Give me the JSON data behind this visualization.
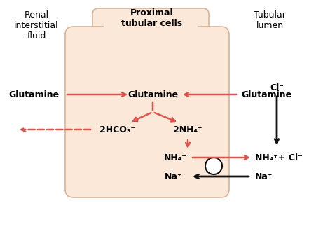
{
  "bg_color": "#ffffff",
  "cell_fill": "#fce8d8",
  "cell_edge": "#d4b49a",
  "arrow_red": "#d9534f",
  "arrow_black": "#111111",
  "title_region_left": "Renal\ninterstitial\nfluid",
  "title_region_center": "Proximal\ntubular cells",
  "title_region_right": "Tubular\nlumen",
  "label_glutamine_left": "Glutamine",
  "label_glutamine_center": "Glutamine",
  "label_glutamine_right": "Glutamine",
  "label_2hco3": "2HCO₃⁻",
  "label_2nh4": "2NH₄⁺",
  "label_nh4_left": "NH₄⁺",
  "label_nh4_right": "NH₄⁺+ Cl⁻",
  "label_na_left": "Na⁺",
  "label_na_right": "Na⁺",
  "label_cl": "Cl⁻",
  "fontsize_title": 9,
  "fontsize_label": 9
}
